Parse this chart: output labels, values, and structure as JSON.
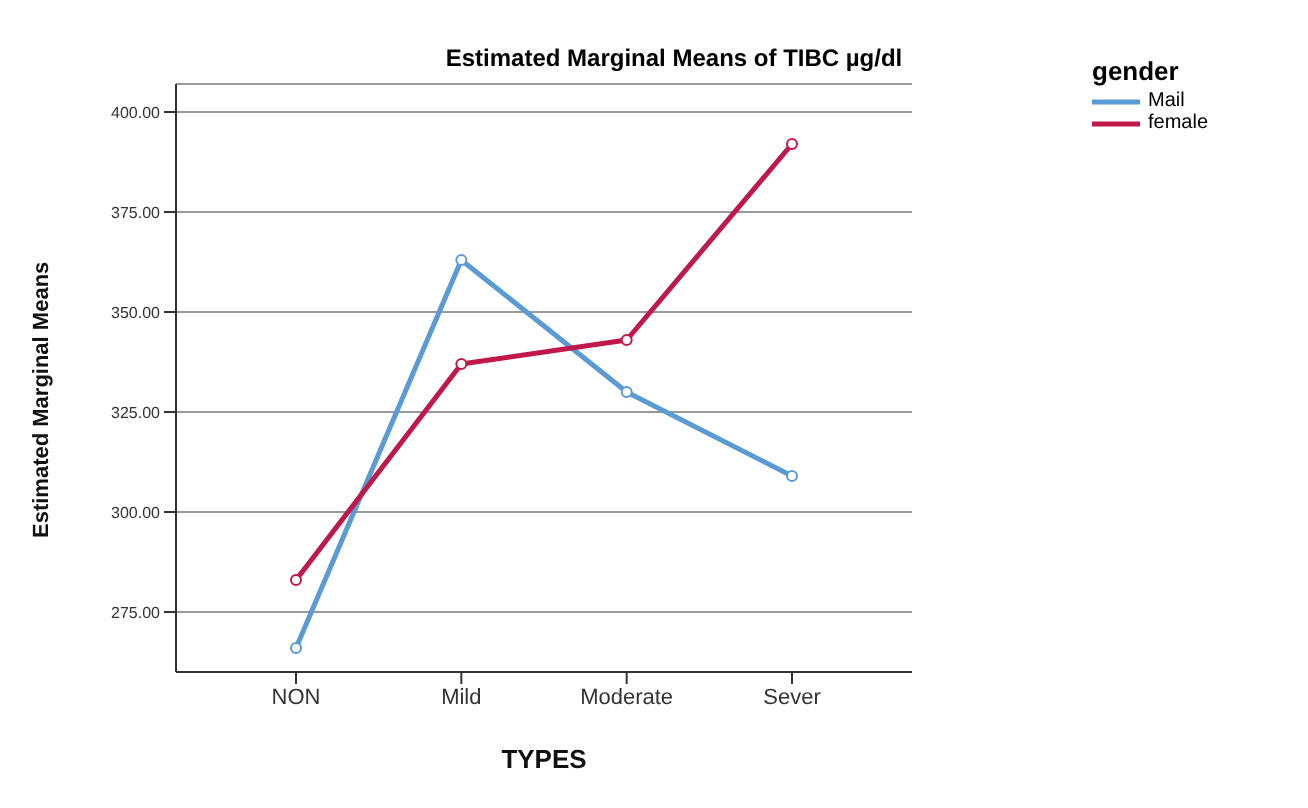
{
  "chart_data": {
    "type": "line",
    "title": "Estimated Marginal Means of TIBC  µg/dl",
    "xlabel": "TYPES",
    "ylabel": "Estimated Marginal Means",
    "legend_title": "gender",
    "categories": [
      "NON",
      "Mild",
      "Moderate",
      "Sever"
    ],
    "series": [
      {
        "name": "Mail",
        "color": "#5b9bd5",
        "values": [
          266,
          363,
          330,
          309
        ]
      },
      {
        "name": "female",
        "color": "#c0184a",
        "values": [
          283,
          337,
          343,
          392
        ]
      }
    ],
    "ylim": [
      260,
      407
    ],
    "yticks": [
      {
        "value": 275,
        "label": "275.00"
      },
      {
        "value": 300,
        "label": "300.00"
      },
      {
        "value": 325,
        "label": "325.00"
      },
      {
        "value": 350,
        "label": "350.00"
      },
      {
        "value": 375,
        "label": "375.00"
      },
      {
        "value": 400,
        "label": "400.00"
      }
    ],
    "grid": "y",
    "legend": "top right",
    "marker": "circle",
    "line_style": "solid"
  }
}
